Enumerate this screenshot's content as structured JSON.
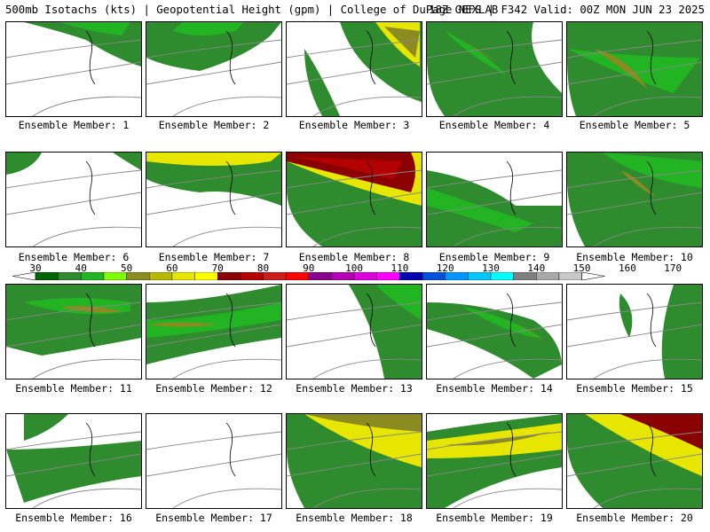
{
  "header": {
    "title_left": "500mb Isotachs (kts) | Geopotential Height (gpm) | College of DuPage NEXLAB",
    "title_right": "18Z GEFS | F342 Valid: 00Z MON JUN 23 2025"
  },
  "legend": {
    "ticks": [
      "30",
      "40",
      "50",
      "60",
      "70",
      "80",
      "90",
      "100",
      "110",
      "120",
      "130",
      "140",
      "150",
      "160",
      "170"
    ],
    "colors": [
      "#006400",
      "#2e8b2e",
      "#22b422",
      "#7fff00",
      "#8b8b22",
      "#b8b800",
      "#e6e600",
      "#ffff00",
      "#8b0000",
      "#b40000",
      "#cd1c1c",
      "#ff0000",
      "#8b008b",
      "#b400b4",
      "#dd00dd",
      "#ff00ff",
      "#0000b4",
      "#0050dc",
      "#0096ff",
      "#00c8ff",
      "#00ffff",
      "#808080",
      "#a9a9a9",
      "#c8c8c8"
    ]
  },
  "panels": [
    {
      "label": "Ensemble Member: 1"
    },
    {
      "label": "Ensemble Member: 2"
    },
    {
      "label": "Ensemble Member: 3"
    },
    {
      "label": "Ensemble Member: 4"
    },
    {
      "label": "Ensemble Member: 5"
    },
    {
      "label": "Ensemble Member: 6"
    },
    {
      "label": "Ensemble Member: 7"
    },
    {
      "label": "Ensemble Member: 8"
    },
    {
      "label": "Ensemble Member: 9"
    },
    {
      "label": "Ensemble Member: 10"
    },
    {
      "label": "Ensemble Member: 11"
    },
    {
      "label": "Ensemble Member: 12"
    },
    {
      "label": "Ensemble Member: 13"
    },
    {
      "label": "Ensemble Member: 14"
    },
    {
      "label": "Ensemble Member: 15"
    },
    {
      "label": "Ensemble Member: 16"
    },
    {
      "label": "Ensemble Member: 17"
    },
    {
      "label": "Ensemble Member: 18"
    },
    {
      "label": "Ensemble Member: 19"
    },
    {
      "label": "Ensemble Member: 20"
    }
  ]
}
